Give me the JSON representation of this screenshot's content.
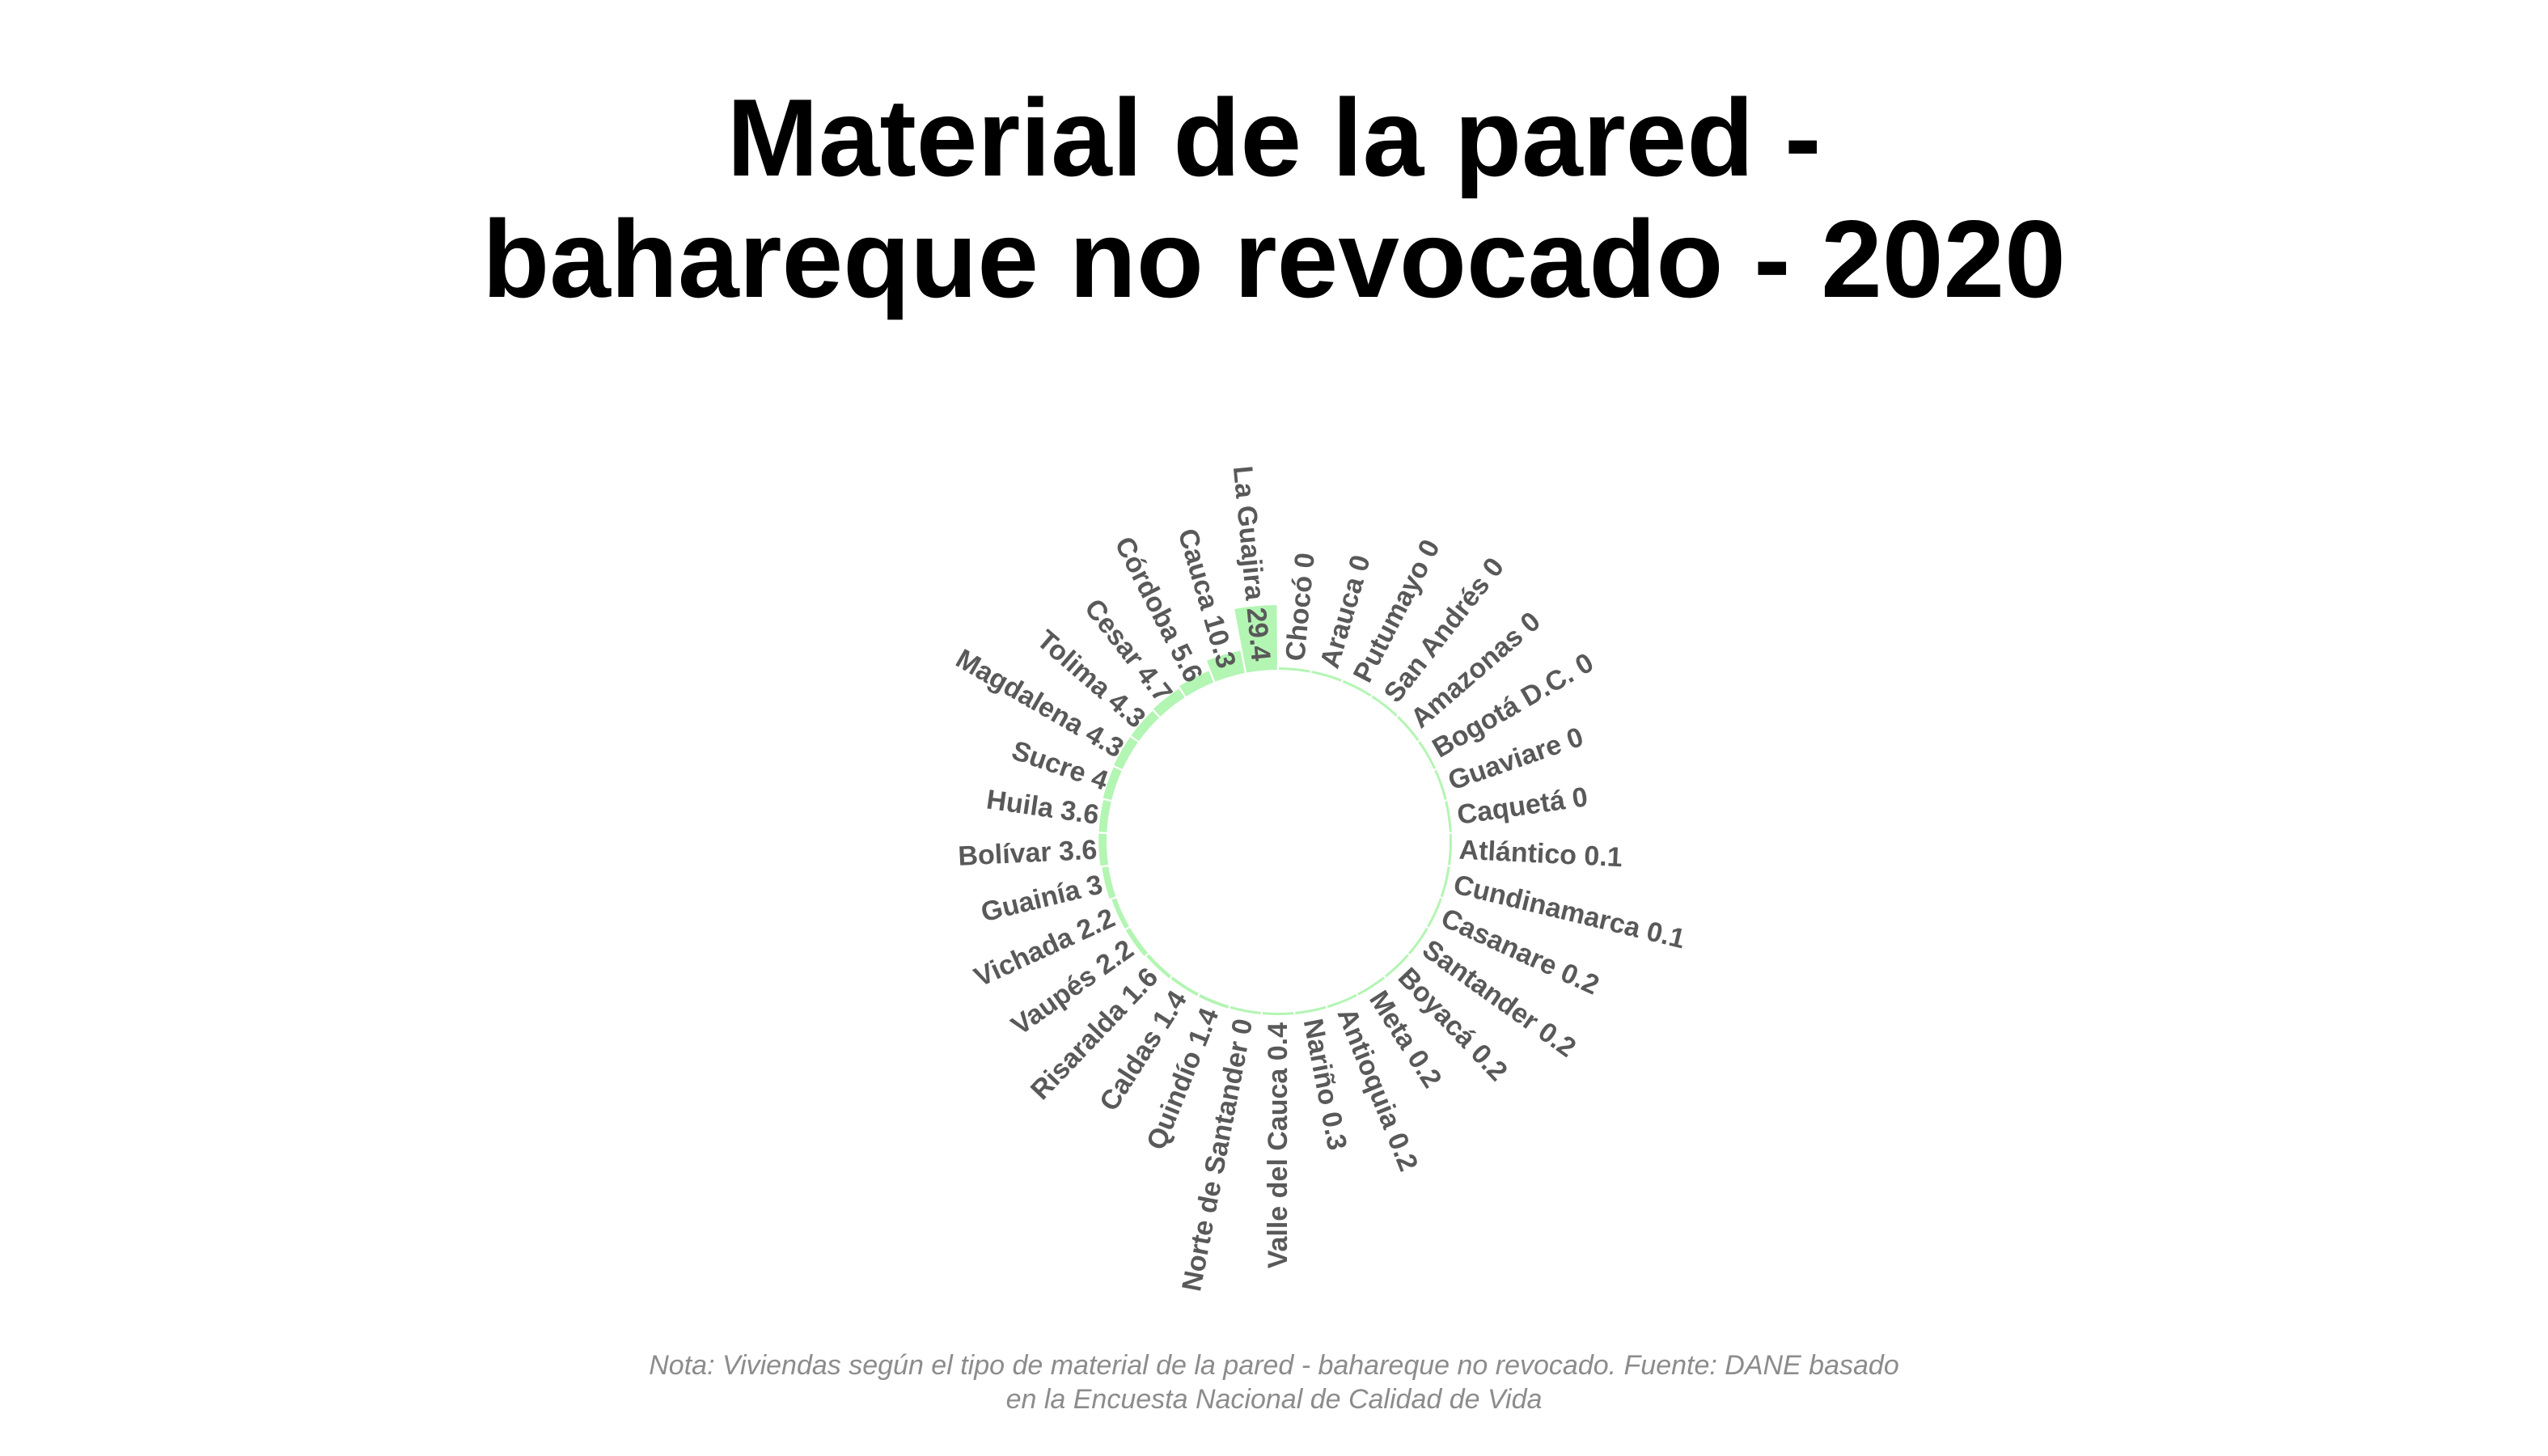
{
  "chart_data": {
    "type": "bar",
    "polar": true,
    "title_lines": [
      "Material de la pared -",
      "bahareque no revocado - 2020"
    ],
    "note_lines": [
      "Nota: Viviendas según el tipo de material de la pared - bahareque no revocado. Fuente: DANE basado",
      "en la Encuesta Nacional de Calidad de Vida"
    ],
    "bar_color": "#b3f5b3",
    "label_color": "#595959",
    "categories": [
      "Chocó",
      "Arauca",
      "Putumayo",
      "San Andrés",
      "Amazonas",
      "Bogotá D.C.",
      "Guaviare",
      "Caquetá",
      "Atlántico",
      "Cundinamarca",
      "Casanare",
      "Santander",
      "Boyacá",
      "Meta",
      "Antioquia",
      "Nariño",
      "Valle del Cauca",
      "Norte de Santander",
      "Quindío",
      "Caldas",
      "Risaralda",
      "Vaupés",
      "Vichada",
      "Guainía",
      "Bolívar",
      "Huila",
      "Sucre",
      "Magdalena",
      "Tolima",
      "Cesar",
      "Córdoba",
      "Cauca",
      "La Guajira"
    ],
    "values": [
      0,
      0,
      0,
      0,
      0,
      0,
      0,
      0,
      0.1,
      0.1,
      0.2,
      0.2,
      0.2,
      0.2,
      0.2,
      0.3,
      0.4,
      0,
      1.4,
      1.4,
      1.6,
      2.2,
      2.2,
      3,
      3.6,
      3.6,
      4,
      4.3,
      4.3,
      4.7,
      5.6,
      10.3,
      29.4
    ],
    "labels": [
      "Chocó 0",
      "Arauca 0",
      "Putumayo 0",
      "San Andrés 0",
      "Amazonas 0",
      "Bogotá D.C. 0",
      "Guaviare 0",
      "Caquetá 0",
      "Atlántico 0.1",
      "Cundinamarca 0.1",
      "Casanare 0.2",
      "Santander 0.2",
      "Boyacá 0.2",
      "Meta 0.2",
      "Antioquia 0.2",
      "Nariño 0.3",
      "Valle del Cauca 0.4",
      "Norte de Santander 0",
      "Quindío 1.4",
      "Caldas 1.4",
      "Risaralda 1.6",
      "Vaupés 2.2",
      "Vichada 2.2",
      "Guainía 3",
      "Bolívar 3.6",
      "Huila 3.6",
      "Sucre 4",
      "Magdalena 4.3",
      "Tolima 4.3",
      "Cesar 4.7",
      "Córdoba 5.6",
      "Cauca 10.3",
      "La Guajira 29.4"
    ]
  }
}
